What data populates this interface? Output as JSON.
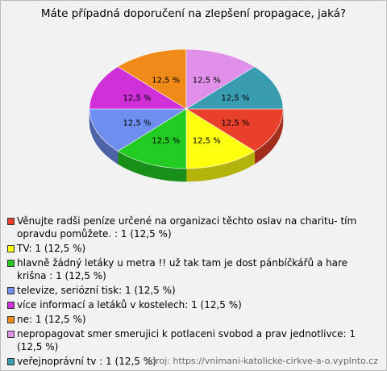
{
  "chart_data": {
    "type": "pie",
    "title": "Máte případná doporučení na zlepšení propagace, jaká?",
    "categories": [
      "Věnujte radši peníze určené na organizaci těchto oslav na charitu- tím opravdu pomůžete. : 1 (12,5 %)",
      "TV: 1 (12,5 %)",
      "hlavně žádný letáky u metra !! už tak tam je dost pánbíčkářů a hare krišna : 1 (12,5 %)",
      "televize, seriózní tisk: 1 (12,5 %)",
      "více informací a letáků v kostelech: 1 (12,5 %)",
      "ne: 1 (12,5 %)",
      "nepropagovat smer smerujici k potlaceni svobod a prav jednotlivce: 1 (12,5 %)",
      "veřejnoprávní tv : 1 (12,5 %)"
    ],
    "values": [
      12.5,
      12.5,
      12.5,
      12.5,
      12.5,
      12.5,
      12.5,
      12.5
    ],
    "value_labels": [
      "12,5 %",
      "12,5 %",
      "12,5 %",
      "12,5 %",
      "12,5 %",
      "12,5 %",
      "12,5 %",
      "12,5 %"
    ],
    "colors": [
      "#e8402a",
      "#ffff10",
      "#22cc22",
      "#6e8ef0",
      "#d030d8",
      "#f08a18",
      "#e090e8",
      "#3a9cb0"
    ],
    "source": "zdroj: https://vnimani-katolicke-cirkve-a-o.vyplnto.cz"
  }
}
